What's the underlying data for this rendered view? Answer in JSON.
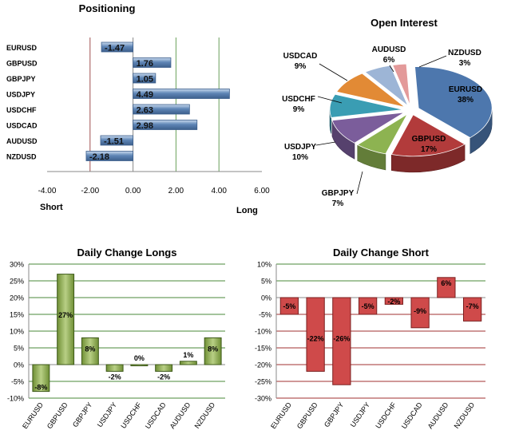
{
  "chart_data": [
    {
      "type": "bar",
      "orientation": "horizontal",
      "title": "Positioning",
      "categories": [
        "EURUSD",
        "GBPUSD",
        "GBPJPY",
        "USDJPY",
        "USDCHF",
        "USDCAD",
        "AUDUSD",
        "NZDUSD"
      ],
      "values": [
        -1.47,
        1.76,
        1.05,
        4.49,
        2.63,
        2.98,
        -1.51,
        -2.18
      ],
      "value_labels": [
        "-1.47",
        "1.76",
        "1.05",
        "4.49",
        "2.63",
        "2.98",
        "-1.51",
        "-2.18"
      ],
      "xlim": [
        -4,
        6
      ],
      "xticks": [
        "-4.00",
        "-2.00",
        "0.00",
        "2.00",
        "4.00",
        "6.00"
      ],
      "left_label": "Short",
      "right_label": "Long",
      "reference_lines": [
        -2,
        2,
        4
      ],
      "colors": {
        "bar": "#5f86b6",
        "bar_light": "#c9daee",
        "line_red": "#a05050",
        "line_green": "#6aa05a"
      }
    },
    {
      "type": "pie",
      "title": "Open Interest",
      "slices": [
        {
          "label": "EURUSD",
          "value": 38,
          "display": "38%",
          "color": "#4d77ad"
        },
        {
          "label": "GBPUSD",
          "value": 17,
          "display": "17%",
          "color": "#b23b3b"
        },
        {
          "label": "GBPJPY",
          "value": 7,
          "display": "7%",
          "color": "#8db351"
        },
        {
          "label": "USDJPY",
          "value": 10,
          "display": "10%",
          "color": "#7b5d9b"
        },
        {
          "label": "USDCHF",
          "value": 9,
          "display": "9%",
          "color": "#3a9db3"
        },
        {
          "label": "USDCAD",
          "value": 9,
          "display": "9%",
          "color": "#e28a35"
        },
        {
          "label": "AUDUSD",
          "value": 6,
          "display": "6%",
          "color": "#9db5d6"
        },
        {
          "label": "NZDUSD",
          "value": 3,
          "display": "3%",
          "color": "#e39a9a"
        }
      ]
    },
    {
      "type": "bar",
      "title": "Daily Change Longs",
      "categories": [
        "EURUSD",
        "GBPUSD",
        "GBPJPY",
        "USDJPY",
        "USDCHF",
        "USDCAD",
        "AUDUSD",
        "NZDUSD"
      ],
      "values": [
        -8,
        27,
        8,
        -2,
        0,
        -2,
        1,
        8
      ],
      "value_labels": [
        "-8%",
        "27%",
        "8%",
        "-2%",
        "0%",
        "-2%",
        "1%",
        "8%"
      ],
      "ylim": [
        -10,
        30
      ],
      "yticks": [
        "-10%",
        "-5%",
        "0%",
        "5%",
        "10%",
        "15%",
        "20%",
        "25%",
        "30%"
      ],
      "colors": {
        "bar": "#6f8f35",
        "bar_light": "#b8cf85",
        "grid": "#4a8a3a"
      }
    },
    {
      "type": "bar",
      "title": "Daily Change Short",
      "categories": [
        "EURUSD",
        "GBPUSD",
        "GBPJPY",
        "USDJPY",
        "USDCHF",
        "USDCAD",
        "AUDUSD",
        "NZDUSD"
      ],
      "values": [
        -5,
        -22,
        -26,
        -5,
        -2,
        -9,
        6,
        -7
      ],
      "value_labels": [
        "-5%",
        "-22%",
        "-26%",
        "-5%",
        "-2%",
        "-9%",
        "6%",
        "-7%"
      ],
      "ylim": [
        -30,
        10
      ],
      "yticks": [
        "-30%",
        "-25%",
        "-20%",
        "-15%",
        "-10%",
        "-5%",
        "0%",
        "5%",
        "10%"
      ],
      "colors": {
        "bar": "#cf4a4a",
        "bar_edge": "#7a2020",
        "grid_pos": "#4a8a3a",
        "grid_neg": "#a03030"
      }
    }
  ]
}
